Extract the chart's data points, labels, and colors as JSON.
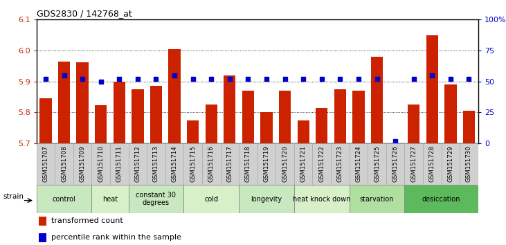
{
  "title": "GDS2830 / 142768_at",
  "samples": [
    "GSM151707",
    "GSM151708",
    "GSM151709",
    "GSM151710",
    "GSM151711",
    "GSM151712",
    "GSM151713",
    "GSM151714",
    "GSM151715",
    "GSM151716",
    "GSM151717",
    "GSM151718",
    "GSM151719",
    "GSM151720",
    "GSM151721",
    "GSM151722",
    "GSM151723",
    "GSM151724",
    "GSM151725",
    "GSM151726",
    "GSM151727",
    "GSM151728",
    "GSM151729",
    "GSM151730"
  ],
  "bar_values": [
    5.845,
    5.965,
    5.962,
    5.824,
    5.9,
    5.875,
    5.885,
    6.005,
    5.775,
    5.825,
    5.92,
    5.87,
    5.8,
    5.87,
    5.775,
    5.815,
    5.875,
    5.87,
    5.98,
    5.7,
    5.825,
    6.05,
    5.89,
    5.805
  ],
  "percentile_values": [
    52,
    55,
    52,
    50,
    52,
    52,
    52,
    55,
    52,
    52,
    52,
    52,
    52,
    52,
    52,
    52,
    52,
    52,
    52,
    2,
    52,
    55,
    52,
    52
  ],
  "bar_color": "#cc2200",
  "dot_color": "#0000cc",
  "ylim_left": [
    5.7,
    6.1
  ],
  "ylim_right": [
    0,
    100
  ],
  "yticks_left": [
    5.7,
    5.8,
    5.9,
    6.0,
    6.1
  ],
  "yticks_right": [
    0,
    25,
    50,
    75,
    100
  ],
  "ytick_labels_right": [
    "0",
    "25",
    "50",
    "75",
    "100%"
  ],
  "grid_lines": [
    5.8,
    5.9,
    6.0
  ],
  "groups": [
    {
      "label": "control",
      "start": 0,
      "end": 2
    },
    {
      "label": "heat",
      "start": 3,
      "end": 4
    },
    {
      "label": "constant 30\ndegrees",
      "start": 5,
      "end": 7
    },
    {
      "label": "cold",
      "start": 8,
      "end": 10
    },
    {
      "label": "longevity",
      "start": 11,
      "end": 13
    },
    {
      "label": "heat knock down",
      "start": 14,
      "end": 16
    },
    {
      "label": "starvation",
      "start": 17,
      "end": 19
    },
    {
      "label": "desiccation",
      "start": 20,
      "end": 23
    }
  ],
  "group_colors": [
    "#c8e8c0",
    "#d8f0c8",
    "#c8e8c0",
    "#d8f0c8",
    "#c8e8c0",
    "#d8f0c8",
    "#b0e0a0",
    "#5cba5c"
  ],
  "tick_bg_color": "#d0d0d0",
  "tick_border_color": "#aaaaaa",
  "group_border_color": "#888888",
  "strain_label": "strain",
  "legend_items": [
    {
      "label": "transformed count",
      "color": "#cc2200"
    },
    {
      "label": "percentile rank within the sample",
      "color": "#0000cc"
    }
  ]
}
